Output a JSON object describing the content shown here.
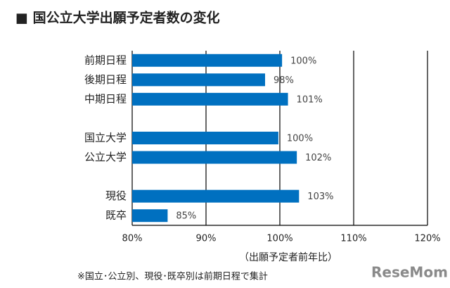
{
  "chart_data": {
    "type": "bar",
    "orientation": "horizontal",
    "title": "■ 国公立大学出願予定者数の変化",
    "categories": [
      "前期日程",
      "後期日程",
      "中期日程",
      null,
      "国立大学",
      "公立大学",
      null,
      "現役",
      "既卒"
    ],
    "values": [
      100.3,
      98,
      101.1,
      null,
      99.8,
      102.3,
      null,
      102.6,
      84.8
    ],
    "value_labels": [
      "100%",
      "98%",
      "101%",
      null,
      "100%",
      "102%",
      null,
      "103%",
      "85%"
    ],
    "color": "#0070c0",
    "xlim": [
      80,
      120
    ],
    "xticks": [
      {
        "value": 80,
        "label": "80%"
      },
      {
        "value": 90,
        "label": "90%"
      },
      {
        "value": 100,
        "label": "100%"
      },
      {
        "value": 110,
        "label": "110%"
      },
      {
        "value": 120,
        "label": "120%"
      }
    ],
    "grid": true,
    "x_label": "（出願予定者前年比）",
    "footnote": "※国立･公立別、現役･既卒別は前期日程で集計",
    "watermark": "ReseMom"
  }
}
